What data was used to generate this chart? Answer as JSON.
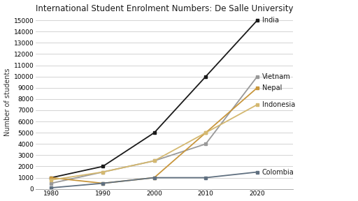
{
  "title": "International Student Enrolment Numbers: De Salle University",
  "ylabel": "Number of students",
  "years": [
    1980,
    1990,
    2000,
    2010,
    2020
  ],
  "series": [
    {
      "label": "India",
      "values": [
        1000,
        2000,
        5000,
        10000,
        15000
      ],
      "color": "#1a1a1a",
      "linewidth": 1.3,
      "marker": "s",
      "markersize": 3.5
    },
    {
      "label": "Vietnam",
      "values": [
        500,
        1500,
        2500,
        4000,
        10000
      ],
      "color": "#999999",
      "linewidth": 1.3,
      "marker": "s",
      "markersize": 3.5
    },
    {
      "label": "Nepal",
      "values": [
        1000,
        500,
        1000,
        5000,
        9000
      ],
      "color": "#c8963c",
      "linewidth": 1.3,
      "marker": "s",
      "markersize": 3.5
    },
    {
      "label": "Indonesia",
      "values": [
        800,
        1500,
        2500,
        5000,
        7500
      ],
      "color": "#d4b870",
      "linewidth": 1.3,
      "marker": "s",
      "markersize": 3.5
    },
    {
      "label": "Colombia",
      "values": [
        100,
        500,
        1000,
        1000,
        1500
      ],
      "color": "#607080",
      "linewidth": 1.3,
      "marker": "s",
      "markersize": 3.5
    }
  ],
  "xlim": [
    1977,
    2027
  ],
  "ylim": [
    0,
    15500
  ],
  "yticks": [
    0,
    1000,
    2000,
    3000,
    4000,
    5000,
    6000,
    7000,
    8000,
    9000,
    10000,
    11000,
    12000,
    13000,
    14000,
    15000
  ],
  "xticks": [
    1980,
    1990,
    2000,
    2010,
    2020
  ],
  "background_color": "#ffffff",
  "grid_color": "#cccccc",
  "title_fontsize": 8.5,
  "label_fontsize": 7,
  "tick_fontsize": 6.5,
  "annotation_fontsize": 7,
  "annotation_color": "#1a1a1a"
}
